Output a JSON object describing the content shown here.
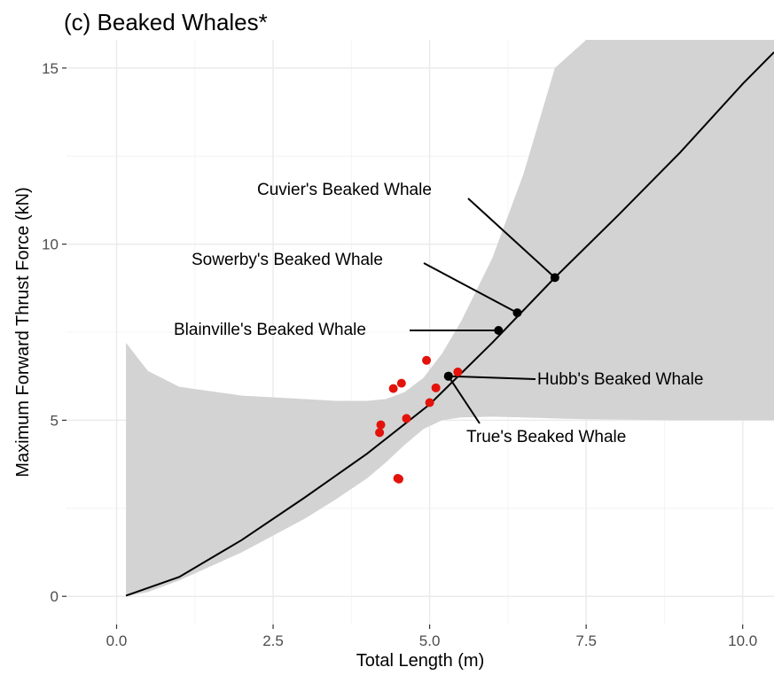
{
  "chart_data": {
    "type": "scatter",
    "title": "(c) Beaked Whales*",
    "xlabel": "Total Length (m)",
    "ylabel": "Maximum Forward Thrust Force (kN)",
    "xlim": [
      -0.8,
      10.5
    ],
    "ylim": [
      -0.8,
      15.8
    ],
    "x_ticks": [
      0.0,
      2.5,
      5.0,
      7.5,
      10.0
    ],
    "x_tick_labels": [
      "0.0",
      "2.5",
      "5.0",
      "7.5",
      "10.0"
    ],
    "y_ticks": [
      0,
      5,
      10,
      15
    ],
    "y_tick_labels": [
      "0",
      "5",
      "10",
      "15"
    ],
    "grid": true,
    "legend": "none",
    "background": "#ffffff",
    "band_color": "#d3d3d3",
    "grid_color": "#ebebeb",
    "fit_line": {
      "color": "#000000",
      "x": [
        0.15,
        1.0,
        2.0,
        3.0,
        4.0,
        5.0,
        6.0,
        7.0,
        8.0,
        9.0,
        10.0,
        10.5
      ],
      "y": [
        0.02,
        0.55,
        1.6,
        2.8,
        4.05,
        5.45,
        7.2,
        9.05,
        10.8,
        12.6,
        14.55,
        15.45
      ]
    },
    "confidence_band": {
      "x": [
        0.15,
        0.5,
        1.0,
        2.0,
        3.0,
        3.5,
        4.0,
        4.3,
        4.6,
        4.9,
        5.2,
        5.5,
        6.0,
        6.5,
        7.0,
        7.5,
        8.0,
        9.0,
        10.0,
        10.5
      ],
      "upper": [
        7.2,
        6.4,
        5.95,
        5.7,
        5.6,
        5.55,
        5.55,
        5.6,
        5.8,
        6.2,
        6.9,
        7.8,
        9.6,
        12.0,
        15.0,
        17.0,
        17.0,
        17.0,
        17.0,
        17.0
      ],
      "lower": [
        0.0,
        0.12,
        0.45,
        1.25,
        2.2,
        2.75,
        3.35,
        3.8,
        4.3,
        4.75,
        5.0,
        5.08,
        5.1,
        5.08,
        5.05,
        5.03,
        5.02,
        5.0,
        5.0,
        5.0
      ]
    },
    "observed_points": {
      "color": "#e3120b",
      "x": [
        4.2,
        4.22,
        4.42,
        4.49,
        4.55,
        4.63,
        4.95,
        5.0,
        5.1,
        5.45,
        4.51
      ],
      "y": [
        4.65,
        4.87,
        5.9,
        3.35,
        6.05,
        5.05,
        6.7,
        5.5,
        5.92,
        6.37,
        3.33
      ]
    },
    "species": [
      {
        "name": "Cuvier's Beaked Whale",
        "x": 7.0,
        "y": 9.05
      },
      {
        "name": "Sowerby's Beaked Whale",
        "x": 6.4,
        "y": 8.05
      },
      {
        "name": "Blainville's Beaked Whale",
        "x": 6.1,
        "y": 7.55
      },
      {
        "name": "Hubb's Beaked Whale",
        "x": 5.3,
        "y": 6.25
      },
      {
        "name": "True's Beaked Whale",
        "x": 5.3,
        "y": 6.25
      }
    ]
  }
}
